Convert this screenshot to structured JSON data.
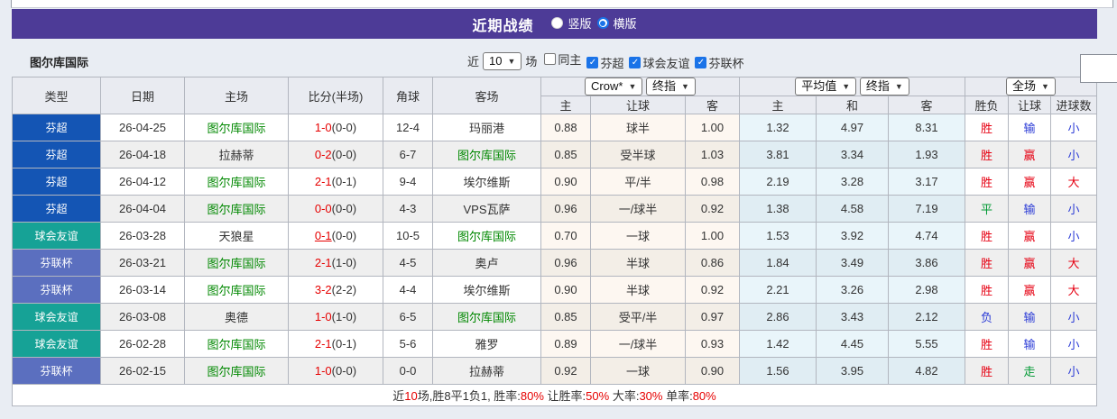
{
  "title_bar": {
    "title": "近期战绩",
    "radios": [
      {
        "label": "竖版",
        "checked": false
      },
      {
        "label": "横版",
        "checked": true
      }
    ]
  },
  "filter_bar": {
    "team": "图尔库国际",
    "near_label": "近",
    "count_value": "10",
    "matches_label": "场",
    "checkboxes": [
      {
        "label": "同主",
        "checked": false
      },
      {
        "label": "芬超",
        "checked": true
      },
      {
        "label": "球会友谊",
        "checked": true
      },
      {
        "label": "芬联杯",
        "checked": true
      }
    ]
  },
  "table": {
    "static_headers": [
      "类型",
      "日期",
      "主场",
      "比分(半场)",
      "角球",
      "客场"
    ],
    "selects": {
      "odds_provider": "Crow*",
      "odds_kind": "终指",
      "avg_label": "平均值",
      "avg_kind": "终指",
      "scope": "全场"
    },
    "sub_headers": [
      "主",
      "让球",
      "客",
      "主",
      "和",
      "客",
      "胜负",
      "让球",
      "进球数"
    ],
    "type_colors": {
      "芬超": "#1455b4",
      "球会友谊": "#16a296",
      "芬联杯": "#5b6fbf"
    },
    "result_colors": {
      "r": "#e60012",
      "g": "#009933",
      "b": "#2b3bd6"
    },
    "rows": [
      {
        "type": "芬超",
        "date": "26-04-25",
        "home": "图尔库国际",
        "home_green": true,
        "score": "1-0",
        "half": "(0-0)",
        "underline": false,
        "corner": "12-4",
        "away": "玛丽港",
        "away_green": false,
        "odds": [
          "0.88",
          "球半",
          "1.00"
        ],
        "avg": [
          "1.32",
          "4.97",
          "8.31"
        ],
        "results": [
          [
            "胜",
            "r"
          ],
          [
            "输",
            "b"
          ],
          [
            "小",
            "b"
          ]
        ]
      },
      {
        "type": "芬超",
        "date": "26-04-18",
        "home": "拉赫蒂",
        "home_green": false,
        "score": "0-2",
        "half": "(0-0)",
        "underline": false,
        "corner": "6-7",
        "away": "图尔库国际",
        "away_green": true,
        "odds": [
          "0.85",
          "受半球",
          "1.03"
        ],
        "avg": [
          "3.81",
          "3.34",
          "1.93"
        ],
        "results": [
          [
            "胜",
            "r"
          ],
          [
            "赢",
            "r"
          ],
          [
            "小",
            "b"
          ]
        ]
      },
      {
        "type": "芬超",
        "date": "26-04-12",
        "home": "图尔库国际",
        "home_green": true,
        "score": "2-1",
        "half": "(0-1)",
        "underline": false,
        "corner": "9-4",
        "away": "埃尔维斯",
        "away_green": false,
        "odds": [
          "0.90",
          "平/半",
          "0.98"
        ],
        "avg": [
          "2.19",
          "3.28",
          "3.17"
        ],
        "results": [
          [
            "胜",
            "r"
          ],
          [
            "赢",
            "r"
          ],
          [
            "大",
            "r"
          ]
        ]
      },
      {
        "type": "芬超",
        "date": "26-04-04",
        "home": "图尔库国际",
        "home_green": true,
        "score": "0-0",
        "half": "(0-0)",
        "underline": false,
        "corner": "4-3",
        "away": "VPS瓦萨",
        "away_green": false,
        "odds": [
          "0.96",
          "一/球半",
          "0.92"
        ],
        "avg": [
          "1.38",
          "4.58",
          "7.19"
        ],
        "results": [
          [
            "平",
            "g"
          ],
          [
            "输",
            "b"
          ],
          [
            "小",
            "b"
          ]
        ]
      },
      {
        "type": "球会友谊",
        "date": "26-03-28",
        "home": "天狼星",
        "home_green": false,
        "score": "0-1",
        "half": "(0-0)",
        "underline": true,
        "corner": "10-5",
        "away": "图尔库国际",
        "away_green": true,
        "odds": [
          "0.70",
          "一球",
          "1.00"
        ],
        "avg": [
          "1.53",
          "3.92",
          "4.74"
        ],
        "results": [
          [
            "胜",
            "r"
          ],
          [
            "赢",
            "r"
          ],
          [
            "小",
            "b"
          ]
        ]
      },
      {
        "type": "芬联杯",
        "date": "26-03-21",
        "home": "图尔库国际",
        "home_green": true,
        "score": "2-1",
        "half": "(1-0)",
        "underline": false,
        "corner": "4-5",
        "away": "奥卢",
        "away_green": false,
        "odds": [
          "0.96",
          "半球",
          "0.86"
        ],
        "avg": [
          "1.84",
          "3.49",
          "3.86"
        ],
        "results": [
          [
            "胜",
            "r"
          ],
          [
            "赢",
            "r"
          ],
          [
            "大",
            "r"
          ]
        ]
      },
      {
        "type": "芬联杯",
        "date": "26-03-14",
        "home": "图尔库国际",
        "home_green": true,
        "score": "3-2",
        "half": "(2-2)",
        "underline": false,
        "corner": "4-4",
        "away": "埃尔维斯",
        "away_green": false,
        "odds": [
          "0.90",
          "半球",
          "0.92"
        ],
        "avg": [
          "2.21",
          "3.26",
          "2.98"
        ],
        "results": [
          [
            "胜",
            "r"
          ],
          [
            "赢",
            "r"
          ],
          [
            "大",
            "r"
          ]
        ]
      },
      {
        "type": "球会友谊",
        "date": "26-03-08",
        "home": "奥德",
        "home_green": false,
        "score": "1-0",
        "half": "(1-0)",
        "underline": false,
        "corner": "6-5",
        "away": "图尔库国际",
        "away_green": true,
        "odds": [
          "0.85",
          "受平/半",
          "0.97"
        ],
        "avg": [
          "2.86",
          "3.43",
          "2.12"
        ],
        "results": [
          [
            "负",
            "b"
          ],
          [
            "输",
            "b"
          ],
          [
            "小",
            "b"
          ]
        ]
      },
      {
        "type": "球会友谊",
        "date": "26-02-28",
        "home": "图尔库国际",
        "home_green": true,
        "score": "2-1",
        "half": "(0-1)",
        "underline": false,
        "corner": "5-6",
        "away": "雅罗",
        "away_green": false,
        "odds": [
          "0.89",
          "一/球半",
          "0.93"
        ],
        "avg": [
          "1.42",
          "4.45",
          "5.55"
        ],
        "results": [
          [
            "胜",
            "r"
          ],
          [
            "输",
            "b"
          ],
          [
            "小",
            "b"
          ]
        ]
      },
      {
        "type": "芬联杯",
        "date": "26-02-15",
        "home": "图尔库国际",
        "home_green": true,
        "score": "1-0",
        "half": "(0-0)",
        "underline": false,
        "corner": "0-0",
        "away": "拉赫蒂",
        "away_green": false,
        "odds": [
          "0.92",
          "一球",
          "0.90"
        ],
        "avg": [
          "1.56",
          "3.95",
          "4.82"
        ],
        "results": [
          [
            "胜",
            "r"
          ],
          [
            "走",
            "g"
          ],
          [
            "小",
            "b"
          ]
        ]
      }
    ],
    "summary": [
      {
        "text": "近",
        "red": false
      },
      {
        "text": "10",
        "red": true
      },
      {
        "text": "场,胜8平1负1, 胜率:",
        "red": false
      },
      {
        "text": "80%",
        "red": true
      },
      {
        "text": " 让胜率:",
        "red": false
      },
      {
        "text": "50%",
        "red": true
      },
      {
        "text": " 大率:",
        "red": false
      },
      {
        "text": "30%",
        "red": true
      },
      {
        "text": " 单率:",
        "red": false
      },
      {
        "text": "80%",
        "red": true
      }
    ]
  }
}
